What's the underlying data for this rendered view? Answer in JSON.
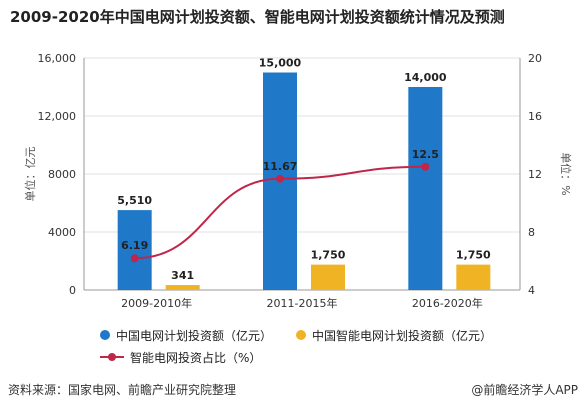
{
  "title": "2009-2020年中国电网计划投资额、智能电网计划投资额统计情况及预测",
  "source": "资料来源：国家电网、前瞻产业研究院整理",
  "credit": "@前瞻经济学人APP",
  "colors": {
    "grid_investment": "#1f78c8",
    "smart_investment": "#f0b323",
    "ratio_line": "#c0264a"
  },
  "chart_data": {
    "type": "bar",
    "categories": [
      "2009-2010年",
      "2011-2015年",
      "2016-2020年"
    ],
    "series": [
      {
        "name": "中国电网计划投资额（亿元）",
        "type": "bar",
        "axis": "left",
        "values": [
          5510,
          15000,
          14000
        ],
        "labels": [
          "5,510",
          "15,000",
          "14,000"
        ]
      },
      {
        "name": "中国智能电网计划投资额（亿元）",
        "type": "bar",
        "axis": "left",
        "values": [
          341,
          1750,
          1750
        ],
        "labels": [
          "341",
          "1,750",
          "1,750"
        ]
      },
      {
        "name": "智能电网投资占比（%）",
        "type": "line",
        "axis": "right",
        "values": [
          6.19,
          11.67,
          12.5
        ],
        "labels": [
          "6.19",
          "11.67",
          "12.5"
        ]
      }
    ],
    "ylabel": "单位：亿元",
    "ylabel_right": "单位：%",
    "ylim": [
      0,
      16000
    ],
    "ylim_right": [
      4,
      20
    ],
    "yticks": [
      "0",
      "4000",
      "8000",
      "12,000",
      "16,000"
    ],
    "yticks_right": [
      "4",
      "8",
      "12",
      "16",
      "20"
    ],
    "ytick_values": [
      0,
      4000,
      8000,
      12000,
      16000
    ],
    "ytick_values_right": [
      4,
      8,
      12,
      16,
      20
    ],
    "grid": true,
    "legend": "bottom"
  }
}
